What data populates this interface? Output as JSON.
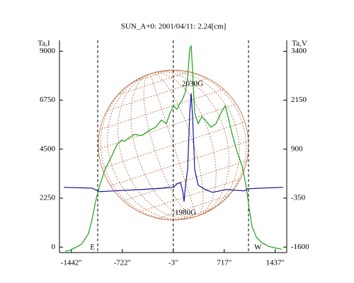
{
  "chart_data": {
    "type": "line",
    "title": "SUN_A+0: 2001/04/11: 2.24[cm]",
    "y_label": "Ta,I",
    "y2_label": "Ta,V",
    "xlim": [
      -1610,
      1600
    ],
    "xticks": [
      {
        "value": -1442,
        "label": "-1442\""
      },
      {
        "value": -722,
        "label": "-722\""
      },
      {
        "value": -3,
        "label": "-3\""
      },
      {
        "value": 717,
        "label": "717\""
      },
      {
        "value": 1437,
        "label": "1437\""
      }
    ],
    "ylim": [
      -250,
      9500
    ],
    "yticks": [
      0,
      2250,
      4500,
      6750,
      9000
    ],
    "y2lim": [
      -1740,
      3680
    ],
    "y2ticks": [
      -1600,
      -350,
      900,
      2150,
      3400
    ],
    "vlines": [
      -1070,
      -3,
      1060
    ],
    "limb_labels": [
      "E",
      "W"
    ],
    "annotations": [
      "2030G",
      "1980G"
    ],
    "series": [
      {
        "name": "Ta,I",
        "color": "#1aa01a",
        "axis": "y",
        "x": [
          -1530,
          -1450,
          -1300,
          -1200,
          -1150,
          -1100,
          -1050,
          -970,
          -870,
          -800,
          -730,
          -690,
          -630,
          -550,
          -450,
          -350,
          -250,
          -170,
          -100,
          -50,
          0,
          50,
          100,
          130,
          170,
          200,
          230,
          250,
          270,
          300,
          350,
          400,
          450,
          530,
          600,
          670,
          730,
          770,
          830,
          900,
          970,
          1030,
          1070,
          1110,
          1170,
          1250,
          1350,
          1530
        ],
        "values": [
          -196,
          -130,
          130,
          620,
          1270,
          2090,
          2740,
          3550,
          4200,
          4700,
          4920,
          4860,
          5020,
          5180,
          5120,
          5350,
          5510,
          5840,
          5670,
          6160,
          6490,
          6330,
          6650,
          6810,
          7140,
          7790,
          9100,
          9260,
          8120,
          6160,
          5670,
          6000,
          5840,
          5510,
          5670,
          6160,
          6490,
          6000,
          5180,
          4370,
          3720,
          2740,
          1760,
          950,
          460,
          200,
          30,
          -100
        ]
      },
      {
        "name": "Ta,V",
        "color": "#14149a",
        "axis": "y2",
        "x": [
          -1550,
          -1150,
          -1050,
          -850,
          -450,
          -150,
          0,
          50,
          100,
          130,
          150,
          170,
          200,
          230,
          250,
          270,
          300,
          350,
          450,
          550,
          750,
          1000,
          1050,
          1250,
          1550
        ],
        "values": [
          -75,
          -95,
          -185,
          -165,
          -130,
          -95,
          -75,
          15,
          50,
          -165,
          -440,
          -20,
          380,
          1825,
          2330,
          1735,
          380,
          -20,
          -130,
          -200,
          -130,
          -165,
          -110,
          -95,
          -75
        ]
      }
    ]
  }
}
